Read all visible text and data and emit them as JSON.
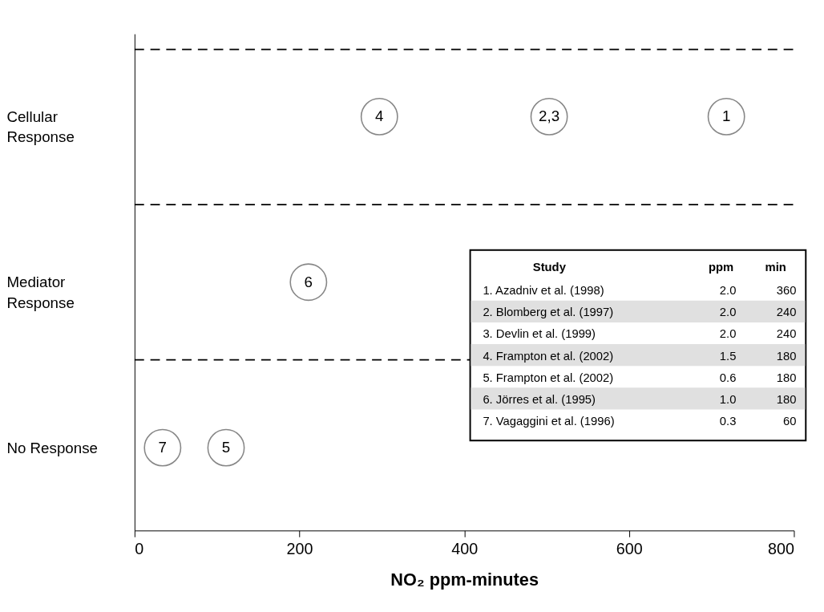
{
  "chart_data": {
    "type": "scatter",
    "orientation": "horizontal",
    "categories": [
      "Cellular Response",
      "Mediator Response",
      "No Response"
    ],
    "xlabel": "NO₂ ppm-minutes",
    "xlim": [
      0,
      800
    ],
    "xticks": [
      0,
      200,
      400,
      600,
      800
    ],
    "grid": false,
    "marker": "circle",
    "series": [
      {
        "color": "#555555",
        "values": [
          297,
          211,
          34
        ]
      },
      {
        "color": "#555555",
        "values": [
          503,
          null,
          111
        ]
      },
      {
        "color": "#555555",
        "values": [
          718,
          null,
          null
        ]
      }
    ],
    "annotations": [
      "4",
      "6",
      "7",
      "2,3",
      "5",
      "1",
      "Study",
      "ppm",
      "min",
      "1.  Azadniv et al. (1998)",
      "2.0",
      "360",
      "2.  Blomberg et al. (1997)",
      "2.0",
      "240",
      "3.  Devlin et al. (1999)",
      "2.0",
      "240",
      "4.  Frampton et al. (2002)",
      "1.5",
      "180",
      "5.  Frampton et al. (2002)",
      "0.6",
      "180",
      "6.  Jörres et al. (1995)",
      "1.0",
      "180",
      "7.  Vagaggini et al. (1996)",
      "0.3",
      "60"
    ]
  }
}
